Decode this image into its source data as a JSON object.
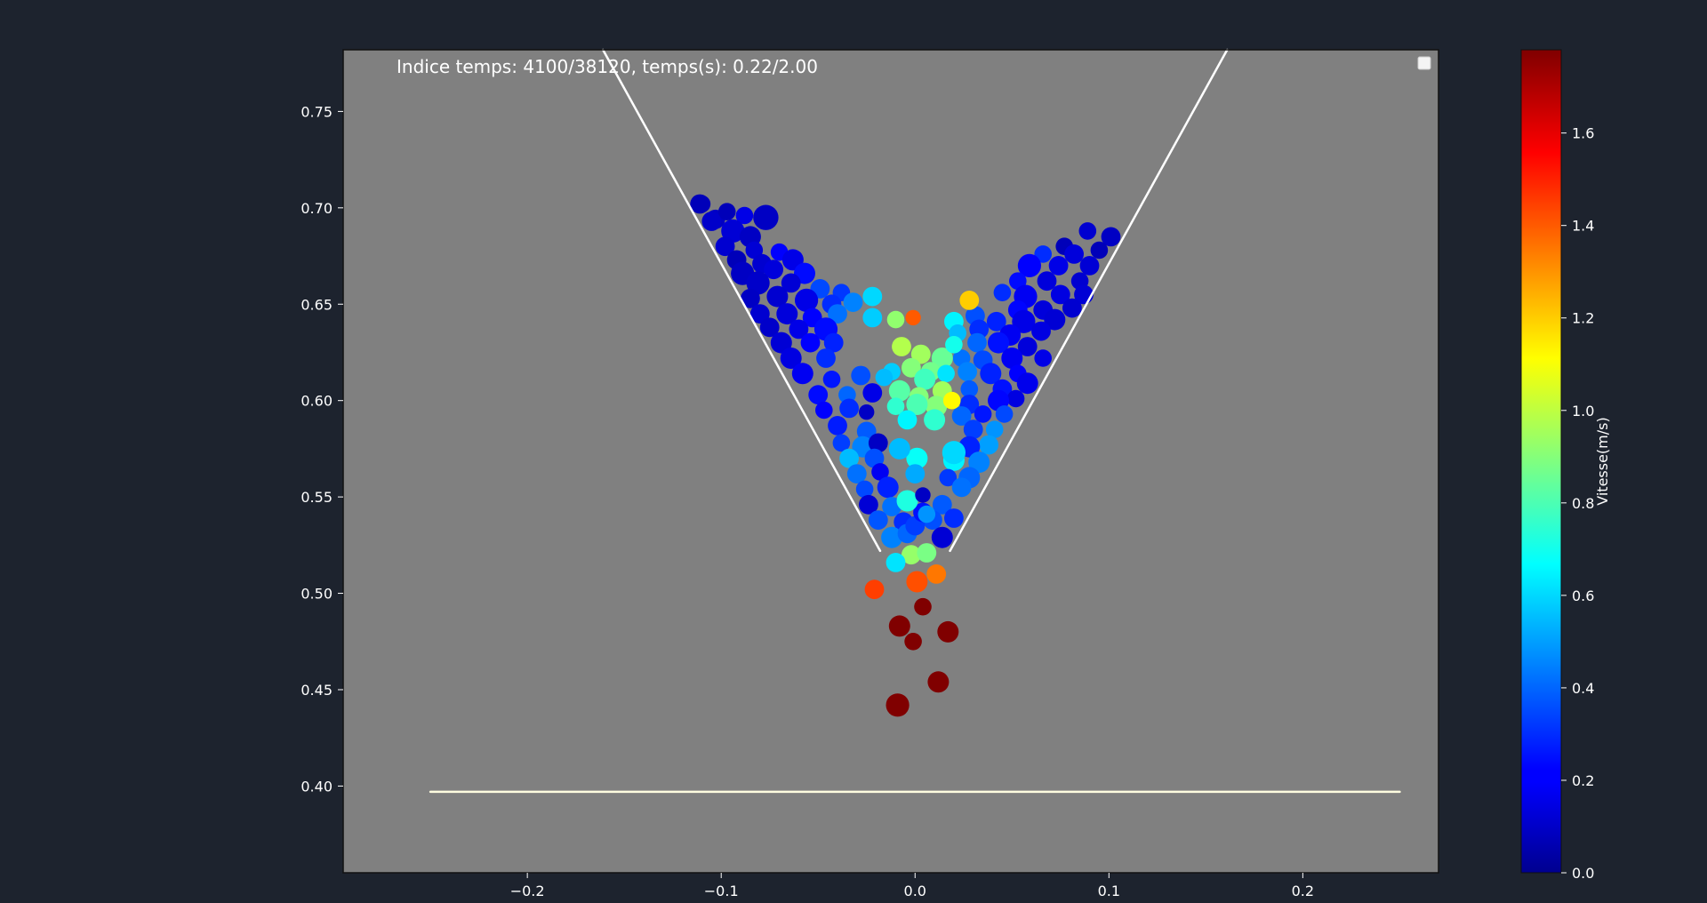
{
  "chart_data": {
    "type": "scatter",
    "annotation": "Indice temps: 4100/38120, temps(s): 0.22/2.00",
    "colorbar_label": "Vitesse(m/s)",
    "colormap": "jet",
    "plot_background": "#808080",
    "figure_background": "#1d232e",
    "wall_color": "#ffffff",
    "floor_color": "#fffde0",
    "xlim": [
      -0.295,
      0.27
    ],
    "ylim": [
      0.355,
      0.782
    ],
    "xticks": [
      -0.2,
      -0.1,
      0.0,
      0.1,
      0.2
    ],
    "xtick_labels": [
      "−0.2",
      "−0.1",
      "0.0",
      "0.1",
      "0.2"
    ],
    "yticks": [
      0.4,
      0.45,
      0.5,
      0.55,
      0.6,
      0.65,
      0.7,
      0.75
    ],
    "ytick_labels": [
      "0.40",
      "0.45",
      "0.50",
      "0.55",
      "0.60",
      "0.65",
      "0.70",
      "0.75"
    ],
    "colorbar_range": [
      0.0,
      1.78
    ],
    "colorbar_ticks": [
      0.0,
      0.2,
      0.4,
      0.6,
      0.8,
      1.0,
      1.2,
      1.4,
      1.6
    ],
    "colorbar_tick_labels": [
      "0.0",
      "0.2",
      "0.4",
      "0.6",
      "0.8",
      "1.0",
      "1.2",
      "1.4",
      "1.6"
    ],
    "grid": false,
    "legend_placement": "top-right",
    "hopper": {
      "left_wall": [
        [
          -0.161,
          0.782
        ],
        [
          -0.018,
          0.522
        ]
      ],
      "right_wall": [
        [
          0.161,
          0.782
        ],
        [
          0.018,
          0.522
        ]
      ],
      "floor": [
        [
          -0.25,
          0.397
        ],
        [
          0.25,
          0.397
        ]
      ]
    },
    "particles": [
      [
        -0.111,
        0.702,
        0.005,
        0.1
      ],
      [
        -0.103,
        0.694,
        0.005,
        0.12
      ],
      [
        -0.097,
        0.698,
        0.0045,
        0.1
      ],
      [
        -0.088,
        0.696,
        0.0045,
        0.18
      ],
      [
        -0.077,
        0.695,
        0.0065,
        0.12
      ],
      [
        -0.105,
        0.693,
        0.005,
        0.13
      ],
      [
        -0.094,
        0.688,
        0.006,
        0.15
      ],
      [
        -0.085,
        0.685,
        0.0055,
        0.12
      ],
      [
        -0.098,
        0.68,
        0.005,
        0.14
      ],
      [
        -0.083,
        0.678,
        0.0045,
        0.15
      ],
      [
        -0.07,
        0.677,
        0.0045,
        0.22
      ],
      [
        -0.092,
        0.673,
        0.005,
        0.1
      ],
      [
        -0.079,
        0.671,
        0.005,
        0.14
      ],
      [
        -0.063,
        0.673,
        0.0055,
        0.18
      ],
      [
        -0.089,
        0.666,
        0.006,
        0.12
      ],
      [
        -0.073,
        0.668,
        0.005,
        0.16
      ],
      [
        -0.057,
        0.666,
        0.0055,
        0.24
      ],
      [
        -0.081,
        0.661,
        0.006,
        0.13
      ],
      [
        -0.064,
        0.661,
        0.005,
        0.15
      ],
      [
        -0.049,
        0.658,
        0.005,
        0.35
      ],
      [
        -0.038,
        0.656,
        0.0045,
        0.32
      ],
      [
        -0.085,
        0.653,
        0.005,
        0.12
      ],
      [
        -0.071,
        0.654,
        0.0055,
        0.14
      ],
      [
        -0.056,
        0.652,
        0.006,
        0.18
      ],
      [
        -0.043,
        0.65,
        0.005,
        0.3
      ],
      [
        -0.032,
        0.651,
        0.005,
        0.45
      ],
      [
        -0.022,
        0.654,
        0.005,
        0.6
      ],
      [
        -0.08,
        0.645,
        0.005,
        0.14
      ],
      [
        -0.066,
        0.645,
        0.0055,
        0.16
      ],
      [
        -0.053,
        0.643,
        0.005,
        0.22
      ],
      [
        -0.04,
        0.645,
        0.005,
        0.42
      ],
      [
        -0.022,
        0.643,
        0.005,
        0.58
      ],
      [
        -0.075,
        0.638,
        0.005,
        0.13
      ],
      [
        -0.06,
        0.637,
        0.005,
        0.18
      ],
      [
        -0.046,
        0.637,
        0.006,
        0.24
      ],
      [
        -0.069,
        0.63,
        0.0055,
        0.15
      ],
      [
        -0.054,
        0.63,
        0.005,
        0.22
      ],
      [
        -0.042,
        0.63,
        0.005,
        0.28
      ],
      [
        -0.064,
        0.622,
        0.0055,
        0.17
      ],
      [
        -0.046,
        0.622,
        0.005,
        0.3
      ],
      [
        -0.058,
        0.614,
        0.0055,
        0.2
      ],
      [
        -0.043,
        0.611,
        0.0045,
        0.26
      ],
      [
        -0.028,
        0.613,
        0.005,
        0.36
      ],
      [
        -0.05,
        0.603,
        0.005,
        0.24
      ],
      [
        -0.035,
        0.603,
        0.0045,
        0.4
      ],
      [
        -0.022,
        0.604,
        0.005,
        0.18
      ],
      [
        -0.047,
        0.595,
        0.0045,
        0.22
      ],
      [
        -0.034,
        0.596,
        0.005,
        0.3
      ],
      [
        -0.025,
        0.594,
        0.004,
        0.12
      ],
      [
        -0.04,
        0.587,
        0.005,
        0.27
      ],
      [
        -0.025,
        0.584,
        0.005,
        0.38
      ],
      [
        -0.038,
        0.578,
        0.0045,
        0.33
      ],
      [
        -0.027,
        0.576,
        0.0055,
        0.45
      ],
      [
        -0.019,
        0.578,
        0.005,
        0.12
      ],
      [
        -0.034,
        0.57,
        0.005,
        0.55
      ],
      [
        -0.021,
        0.57,
        0.005,
        0.36
      ],
      [
        -0.03,
        0.562,
        0.005,
        0.42
      ],
      [
        -0.018,
        0.563,
        0.0045,
        0.2
      ],
      [
        -0.026,
        0.554,
        0.0045,
        0.35
      ],
      [
        -0.014,
        0.555,
        0.0055,
        0.28
      ],
      [
        -0.024,
        0.546,
        0.005,
        0.15
      ],
      [
        -0.012,
        0.545,
        0.005,
        0.42
      ],
      [
        -0.019,
        0.538,
        0.005,
        0.37
      ],
      [
        -0.006,
        0.537,
        0.005,
        0.3
      ],
      [
        -0.012,
        0.529,
        0.0055,
        0.45
      ],
      [
        -0.004,
        0.531,
        0.005,
        0.4
      ],
      [
        -0.11,
        0.702,
        0.0045,
        0.1
      ],
      [
        0.101,
        0.685,
        0.005,
        0.12
      ],
      [
        0.089,
        0.688,
        0.0045,
        0.14
      ],
      [
        0.095,
        0.678,
        0.0045,
        0.1
      ],
      [
        0.077,
        0.68,
        0.0045,
        0.1
      ],
      [
        0.082,
        0.676,
        0.005,
        0.16
      ],
      [
        0.066,
        0.676,
        0.0045,
        0.3
      ],
      [
        0.09,
        0.67,
        0.005,
        0.15
      ],
      [
        0.074,
        0.67,
        0.005,
        0.18
      ],
      [
        0.059,
        0.67,
        0.006,
        0.22
      ],
      [
        0.085,
        0.662,
        0.0045,
        0.14
      ],
      [
        0.068,
        0.662,
        0.005,
        0.16
      ],
      [
        0.053,
        0.662,
        0.0045,
        0.24
      ],
      [
        0.087,
        0.655,
        0.005,
        0.15
      ],
      [
        0.075,
        0.655,
        0.005,
        0.17
      ],
      [
        0.057,
        0.654,
        0.006,
        0.2
      ],
      [
        0.045,
        0.656,
        0.0045,
        0.3
      ],
      [
        0.081,
        0.648,
        0.005,
        0.14
      ],
      [
        0.066,
        0.647,
        0.005,
        0.16
      ],
      [
        0.053,
        0.647,
        0.005,
        0.23
      ],
      [
        0.072,
        0.642,
        0.0055,
        0.15
      ],
      [
        0.056,
        0.641,
        0.006,
        0.18
      ],
      [
        0.042,
        0.641,
        0.005,
        0.28
      ],
      [
        0.031,
        0.644,
        0.005,
        0.36
      ],
      [
        0.02,
        0.641,
        0.005,
        0.65
      ],
      [
        0.065,
        0.636,
        0.005,
        0.17
      ],
      [
        0.049,
        0.634,
        0.0055,
        0.2
      ],
      [
        0.033,
        0.637,
        0.005,
        0.3
      ],
      [
        0.022,
        0.635,
        0.0045,
        0.55
      ],
      [
        0.058,
        0.628,
        0.005,
        0.16
      ],
      [
        0.043,
        0.63,
        0.0055,
        0.25
      ],
      [
        0.032,
        0.63,
        0.005,
        0.4
      ],
      [
        0.066,
        0.622,
        0.0045,
        0.18
      ],
      [
        0.05,
        0.622,
        0.0055,
        0.2
      ],
      [
        0.035,
        0.621,
        0.005,
        0.35
      ],
      [
        0.024,
        0.622,
        0.0045,
        0.42
      ],
      [
        0.053,
        0.614,
        0.0045,
        0.22
      ],
      [
        0.039,
        0.614,
        0.0055,
        0.28
      ],
      [
        0.027,
        0.615,
        0.005,
        0.45
      ],
      [
        0.058,
        0.609,
        0.0055,
        0.19
      ],
      [
        0.045,
        0.606,
        0.005,
        0.25
      ],
      [
        0.028,
        0.606,
        0.0045,
        0.38
      ],
      [
        0.052,
        0.601,
        0.0045,
        0.17
      ],
      [
        0.043,
        0.6,
        0.0055,
        0.23
      ],
      [
        0.028,
        0.598,
        0.005,
        0.3
      ],
      [
        0.046,
        0.593,
        0.0045,
        0.35
      ],
      [
        0.035,
        0.593,
        0.0045,
        0.26
      ],
      [
        0.024,
        0.592,
        0.005,
        0.4
      ],
      [
        0.041,
        0.585,
        0.0045,
        0.48
      ],
      [
        0.03,
        0.585,
        0.005,
        0.33
      ],
      [
        0.038,
        0.577,
        0.005,
        0.5
      ],
      [
        0.028,
        0.576,
        0.0055,
        0.28
      ],
      [
        0.033,
        0.568,
        0.0055,
        0.45
      ],
      [
        0.02,
        0.569,
        0.0055,
        0.65
      ],
      [
        0.028,
        0.56,
        0.0055,
        0.4
      ],
      [
        0.017,
        0.56,
        0.0045,
        0.32
      ],
      [
        0.024,
        0.555,
        0.005,
        0.42
      ],
      [
        0.014,
        0.546,
        0.005,
        0.38
      ],
      [
        0.02,
        0.539,
        0.005,
        0.3
      ],
      [
        0.009,
        0.538,
        0.005,
        0.36
      ],
      [
        0.014,
        0.529,
        0.0055,
        0.15
      ],
      [
        0.0,
        0.535,
        0.005,
        0.33
      ],
      [
        0.004,
        0.542,
        0.005,
        0.25
      ],
      [
        -0.01,
        0.642,
        0.0045,
        0.92
      ],
      [
        -0.001,
        0.643,
        0.004,
        1.4
      ],
      [
        -0.007,
        0.628,
        0.005,
        0.98
      ],
      [
        0.003,
        0.624,
        0.005,
        0.95
      ],
      [
        0.014,
        0.622,
        0.0055,
        0.85
      ],
      [
        -0.002,
        0.617,
        0.005,
        0.9
      ],
      [
        0.008,
        0.615,
        0.005,
        0.87
      ],
      [
        -0.012,
        0.615,
        0.0045,
        0.58
      ],
      [
        0.016,
        0.614,
        0.0045,
        0.62
      ],
      [
        0.005,
        0.611,
        0.0055,
        0.78
      ],
      [
        0.014,
        0.605,
        0.005,
        0.95
      ],
      [
        -0.008,
        0.605,
        0.0055,
        0.82
      ],
      [
        0.002,
        0.602,
        0.005,
        0.9
      ],
      [
        0.011,
        0.597,
        0.0055,
        0.9
      ],
      [
        0.019,
        0.6,
        0.0045,
        1.12
      ],
      [
        -0.01,
        0.597,
        0.0045,
        0.75
      ],
      [
        0.001,
        0.598,
        0.0055,
        0.8
      ],
      [
        -0.004,
        0.59,
        0.005,
        0.65
      ],
      [
        0.01,
        0.59,
        0.0055,
        0.75
      ],
      [
        0.028,
        0.652,
        0.005,
        1.2
      ],
      [
        0.02,
        0.629,
        0.0045,
        0.7
      ],
      [
        -0.016,
        0.612,
        0.0045,
        0.55
      ],
      [
        0.001,
        0.57,
        0.0055,
        0.68
      ],
      [
        -0.008,
        0.575,
        0.0055,
        0.55
      ],
      [
        0.02,
        0.573,
        0.006,
        0.6
      ],
      [
        0.0,
        0.562,
        0.005,
        0.52
      ],
      [
        -0.004,
        0.548,
        0.0055,
        0.72
      ],
      [
        0.004,
        0.551,
        0.004,
        0.12
      ],
      [
        0.006,
        0.541,
        0.0045,
        0.48
      ],
      [
        -0.002,
        0.52,
        0.005,
        0.93
      ],
      [
        0.006,
        0.521,
        0.005,
        0.88
      ],
      [
        -0.01,
        0.516,
        0.005,
        0.62
      ],
      [
        0.011,
        0.51,
        0.005,
        1.35
      ],
      [
        0.001,
        0.506,
        0.0055,
        1.42
      ],
      [
        -0.021,
        0.502,
        0.005,
        1.45
      ],
      [
        0.004,
        0.493,
        0.0045,
        1.78
      ],
      [
        -0.008,
        0.483,
        0.0055,
        1.78
      ],
      [
        0.017,
        0.48,
        0.0055,
        1.78
      ],
      [
        -0.001,
        0.475,
        0.0045,
        1.78
      ],
      [
        0.012,
        0.454,
        0.0055,
        1.78
      ],
      [
        -0.009,
        0.442,
        0.006,
        1.78
      ]
    ]
  }
}
